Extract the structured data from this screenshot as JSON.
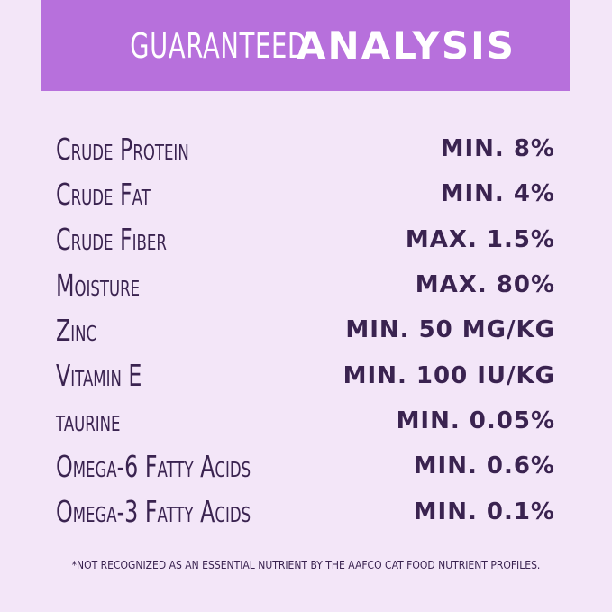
{
  "header": {
    "title_light": "GUARANTEED",
    "title_bold": "ANALYSIS"
  },
  "table": {
    "rows": [
      [
        "Crude Protein",
        "MIN. 8%"
      ],
      [
        "Crude Fat",
        "MIN. 4%"
      ],
      [
        "Crude Fiber",
        "MAX. 1.5%"
      ],
      [
        "Moisture",
        "MAX. 80%"
      ],
      [
        "Zinc",
        "MIN. 50 MG/KG"
      ],
      [
        "Vitamin E",
        "MIN. 100 IU/KG"
      ],
      [
        "taurine",
        "MIN. 0.05%"
      ],
      [
        "Omega-6 Fatty Acids",
        "MIN. 0.6%"
      ],
      [
        "Omega-3 Fatty Acids",
        "MIN. 0.1%"
      ]
    ]
  },
  "footnote": "*NOT RECOGNIZED AS AN ESSENTIAL NUTRIENT BY THE AAFCO CAT FOOD NUTRIENT PROFILES."
}
